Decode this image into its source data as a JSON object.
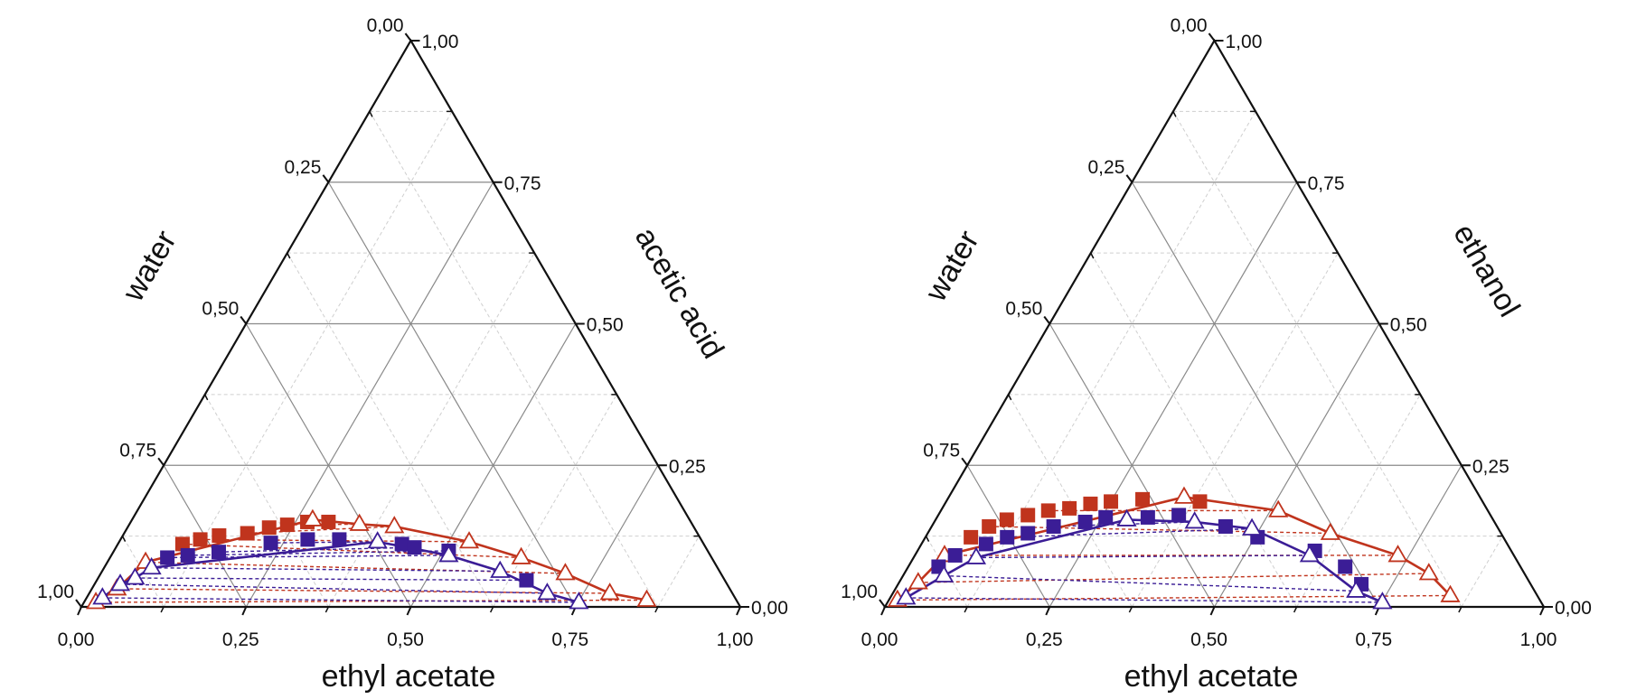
{
  "tick_labels": [
    "0,00",
    "0,25",
    "0,50",
    "0,75",
    "1,00"
  ],
  "colors": {
    "red": "#c0341d",
    "blue": "#3b1d96",
    "grid": "#8a8a8a",
    "minor_grid": "#cfcfcf"
  },
  "chart_data": [
    {
      "type": "ternary",
      "grid": true,
      "axes": {
        "bottom": "ethyl acetate",
        "left": "water",
        "right": "acetic acid"
      },
      "axis_range": [
        0,
        1
      ],
      "series": [
        {
          "marker": "filled-square",
          "color": "red",
          "line": false,
          "points": [
            [
              0.098,
              0.111
            ],
            [
              0.121,
              0.119
            ],
            [
              0.146,
              0.126
            ],
            [
              0.187,
              0.13
            ],
            [
              0.215,
              0.14
            ],
            [
              0.24,
              0.145
            ],
            [
              0.268,
              0.15
            ],
            [
              0.3,
              0.15
            ]
          ]
        },
        {
          "marker": "open-triangle",
          "color": "red",
          "line": true,
          "points": [
            [
              0.018,
              0.008
            ],
            [
              0.038,
              0.032
            ],
            [
              0.058,
              0.079
            ],
            [
              0.274,
              0.154
            ],
            [
              0.349,
              0.146
            ],
            [
              0.404,
              0.142
            ],
            [
              0.531,
              0.115
            ],
            [
              0.624,
              0.087
            ],
            [
              0.705,
              0.059
            ],
            [
              0.79,
              0.024
            ],
            [
              0.852,
              0.012
            ]
          ]
        },
        {
          "marker": "filled-square",
          "color": "blue",
          "line": false,
          "points": [
            [
              0.087,
              0.087
            ],
            [
              0.116,
              0.091
            ],
            [
              0.16,
              0.097
            ],
            [
              0.231,
              0.113
            ],
            [
              0.284,
              0.119
            ],
            [
              0.332,
              0.119
            ],
            [
              0.431,
              0.111
            ],
            [
              0.453,
              0.105
            ],
            [
              0.508,
              0.099
            ],
            [
              0.652,
              0.047
            ]
          ]
        },
        {
          "marker": "open-triangle",
          "color": "blue",
          "line": true,
          "points": [
            [
              0.024,
              0.016
            ],
            [
              0.039,
              0.04
            ],
            [
              0.056,
              0.051
            ],
            [
              0.072,
              0.069
            ],
            [
              0.392,
              0.115
            ],
            [
              0.512,
              0.091
            ],
            [
              0.604,
              0.063
            ],
            [
              0.695,
              0.024
            ],
            [
              0.751,
              0.008
            ]
          ]
        }
      ],
      "tie_lines": {
        "blue": [
          [
            [
              0.024,
              0.016
            ],
            [
              0.751,
              0.008
            ]
          ],
          [
            [
              0.039,
              0.04
            ],
            [
              0.695,
              0.024
            ]
          ],
          [
            [
              0.056,
              0.051
            ],
            [
              0.652,
              0.047
            ]
          ],
          [
            [
              0.072,
              0.069
            ],
            [
              0.604,
              0.063
            ]
          ],
          [
            [
              0.087,
              0.087
            ],
            [
              0.512,
              0.091
            ]
          ],
          [
            [
              0.116,
              0.091
            ],
            [
              0.508,
              0.099
            ]
          ],
          [
            [
              0.16,
              0.097
            ],
            [
              0.453,
              0.105
            ]
          ],
          [
            [
              0.231,
              0.113
            ],
            [
              0.392,
              0.115
            ]
          ]
        ],
        "red": [
          [
            [
              0.018,
              0.008
            ],
            [
              0.852,
              0.012
            ]
          ],
          [
            [
              0.038,
              0.032
            ],
            [
              0.79,
              0.024
            ]
          ],
          [
            [
              0.058,
              0.079
            ],
            [
              0.705,
              0.059
            ]
          ],
          [
            [
              0.098,
              0.111
            ],
            [
              0.624,
              0.087
            ]
          ],
          [
            [
              0.121,
              0.119
            ],
            [
              0.531,
              0.115
            ]
          ],
          [
            [
              0.187,
              0.13
            ],
            [
              0.404,
              0.142
            ]
          ],
          [
            [
              0.24,
              0.145
            ],
            [
              0.349,
              0.146
            ]
          ]
        ]
      }
    },
    {
      "type": "ternary",
      "grid": true,
      "axes": {
        "bottom": "ethyl acetate",
        "left": "water",
        "right": "ethanol"
      },
      "axis_range": [
        0,
        1
      ],
      "series": [
        {
          "marker": "filled-square",
          "color": "red",
          "line": false,
          "points": [
            [
              0.069,
              0.123
            ],
            [
              0.087,
              0.142
            ],
            [
              0.108,
              0.154
            ],
            [
              0.136,
              0.162
            ],
            [
              0.163,
              0.17
            ],
            [
              0.193,
              0.174
            ],
            [
              0.221,
              0.182
            ],
            [
              0.25,
              0.186
            ],
            [
              0.296,
              0.19
            ],
            [
              0.385,
              0.186
            ]
          ]
        },
        {
          "marker": "open-triangle",
          "color": "red",
          "line": true,
          "points": [
            [
              0.013,
              0.012
            ],
            [
              0.029,
              0.043
            ],
            [
              0.045,
              0.091
            ],
            [
              0.357,
              0.194
            ],
            [
              0.512,
              0.17
            ],
            [
              0.611,
              0.13
            ],
            [
              0.733,
              0.091
            ],
            [
              0.796,
              0.059
            ],
            [
              0.848,
              0.02
            ]
          ]
        },
        {
          "marker": "filled-square",
          "color": "blue",
          "line": false,
          "points": [
            [
              0.046,
              0.071
            ],
            [
              0.061,
              0.091
            ],
            [
              0.098,
              0.111
            ],
            [
              0.124,
              0.123
            ],
            [
              0.152,
              0.13
            ],
            [
              0.185,
              0.142
            ],
            [
              0.229,
              0.15
            ],
            [
              0.256,
              0.158
            ],
            [
              0.32,
              0.158
            ],
            [
              0.365,
              0.162
            ],
            [
              0.446,
              0.142
            ],
            [
              0.504,
              0.123
            ],
            [
              0.603,
              0.099
            ],
            [
              0.663,
              0.071
            ],
            [
              0.703,
              0.04
            ]
          ]
        },
        {
          "marker": "open-triangle",
          "color": "blue",
          "line": true,
          "points": [
            [
              0.024,
              0.016
            ],
            [
              0.062,
              0.055
            ],
            [
              0.095,
              0.087
            ],
            [
              0.29,
              0.154
            ],
            [
              0.395,
              0.15
            ],
            [
              0.488,
              0.138
            ],
            [
              0.599,
              0.091
            ],
            [
              0.701,
              0.028
            ],
            [
              0.751,
              0.008
            ]
          ]
        }
      ],
      "tie_lines": {
        "blue": [
          [
            [
              0.024,
              0.016
            ],
            [
              0.751,
              0.008
            ]
          ],
          [
            [
              0.062,
              0.055
            ],
            [
              0.701,
              0.028
            ]
          ],
          [
            [
              0.095,
              0.087
            ],
            [
              0.599,
              0.091
            ]
          ],
          [
            [
              0.124,
              0.123
            ],
            [
              0.488,
              0.138
            ]
          ],
          [
            [
              0.185,
              0.142
            ],
            [
              0.395,
              0.15
            ]
          ]
        ],
        "red": [
          [
            [
              0.013,
              0.012
            ],
            [
              0.848,
              0.02
            ]
          ],
          [
            [
              0.029,
              0.043
            ],
            [
              0.796,
              0.059
            ]
          ],
          [
            [
              0.045,
              0.091
            ],
            [
              0.733,
              0.091
            ]
          ],
          [
            [
              0.087,
              0.142
            ],
            [
              0.611,
              0.13
            ]
          ],
          [
            [
              0.163,
              0.17
            ],
            [
              0.512,
              0.17
            ]
          ]
        ]
      }
    }
  ]
}
